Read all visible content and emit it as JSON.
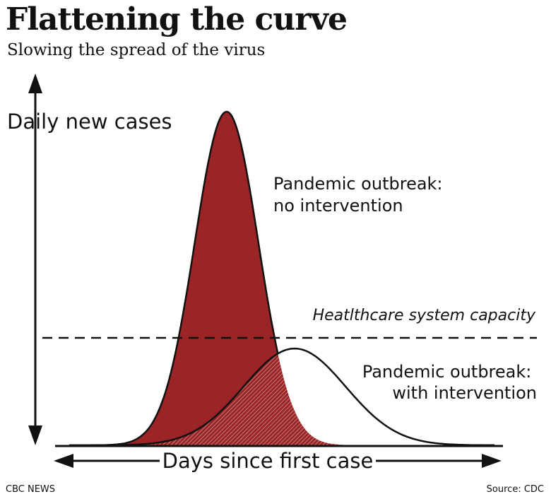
{
  "chart_data": {
    "type": "area",
    "title": "Flattening the curve",
    "subtitle": "Slowing the spread of the virus",
    "ylabel": "Daily new cases",
    "xlabel": "Days since first case",
    "series": [
      {
        "name": "Pandemic outbreak: no intervention",
        "label_lines": [
          "Pandemic outbreak:",
          "no intervention"
        ],
        "fill": "#9b2426",
        "peak_x": 0.37,
        "peak_y": 1.0,
        "spread": 0.075
      },
      {
        "name": "Pandemic outbreak: with intervention",
        "label_lines": [
          "Pandemic outbreak:",
          "with intervention"
        ],
        "fill": "#ffffff",
        "peak_x": 0.53,
        "peak_y": 0.29,
        "spread": 0.12
      }
    ],
    "threshold": {
      "label": "Heatlthcare system capacity",
      "y": 0.32
    },
    "grid": false,
    "legend": "none",
    "colors": {
      "outbreak": "#9b2426",
      "overlap_hatch": "#7a2a2c",
      "axis": "#111111"
    }
  },
  "footer": {
    "source_left": "CBC NEWS",
    "source_right": "Source: CDC"
  }
}
